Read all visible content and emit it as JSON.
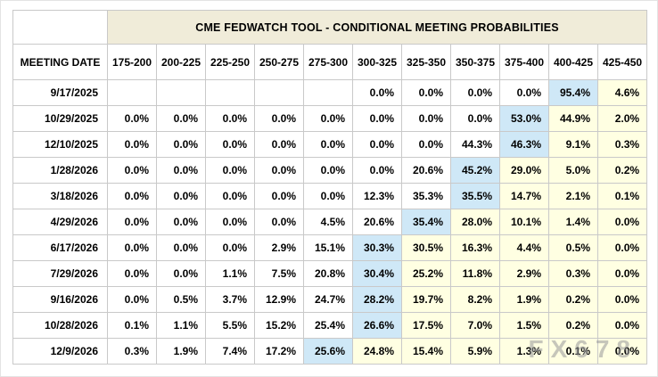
{
  "watermark": "FX678",
  "colors": {
    "highlight_blue": "#cfe8f7",
    "highlight_cream": "#ffffe2",
    "title_background": "#f0ecd9"
  },
  "chart_data": {
    "type": "table",
    "title": "CME FEDWATCH TOOL - CONDITIONAL MEETING PROBABILITIES",
    "row_header": "MEETING DATE",
    "columns": [
      "175-200",
      "200-225",
      "225-250",
      "250-275",
      "275-300",
      "300-325",
      "325-350",
      "350-375",
      "375-400",
      "400-425",
      "425-450"
    ],
    "rows": [
      {
        "date": "9/17/2025",
        "values": [
          "",
          "",
          "",
          "",
          "",
          "0.0%",
          "0.0%",
          "0.0%",
          "0.0%",
          "95.4%",
          "4.6%"
        ],
        "highlight_index": 9
      },
      {
        "date": "10/29/2025",
        "values": [
          "0.0%",
          "0.0%",
          "0.0%",
          "0.0%",
          "0.0%",
          "0.0%",
          "0.0%",
          "0.0%",
          "53.0%",
          "44.9%",
          "2.0%"
        ],
        "highlight_index": 8
      },
      {
        "date": "12/10/2025",
        "values": [
          "0.0%",
          "0.0%",
          "0.0%",
          "0.0%",
          "0.0%",
          "0.0%",
          "0.0%",
          "44.3%",
          "46.3%",
          "9.1%",
          "0.3%"
        ],
        "highlight_index": 8
      },
      {
        "date": "1/28/2026",
        "values": [
          "0.0%",
          "0.0%",
          "0.0%",
          "0.0%",
          "0.0%",
          "0.0%",
          "20.6%",
          "45.2%",
          "29.0%",
          "5.0%",
          "0.2%"
        ],
        "highlight_index": 7
      },
      {
        "date": "3/18/2026",
        "values": [
          "0.0%",
          "0.0%",
          "0.0%",
          "0.0%",
          "0.0%",
          "12.3%",
          "35.3%",
          "35.5%",
          "14.7%",
          "2.1%",
          "0.1%"
        ],
        "highlight_index": 7
      },
      {
        "date": "4/29/2026",
        "values": [
          "0.0%",
          "0.0%",
          "0.0%",
          "0.0%",
          "4.5%",
          "20.6%",
          "35.4%",
          "28.0%",
          "10.1%",
          "1.4%",
          "0.0%"
        ],
        "highlight_index": 6
      },
      {
        "date": "6/17/2026",
        "values": [
          "0.0%",
          "0.0%",
          "0.0%",
          "2.9%",
          "15.1%",
          "30.3%",
          "30.5%",
          "16.3%",
          "4.4%",
          "0.5%",
          "0.0%"
        ],
        "highlight_index": 5
      },
      {
        "date": "7/29/2026",
        "values": [
          "0.0%",
          "0.0%",
          "1.1%",
          "7.5%",
          "20.8%",
          "30.4%",
          "25.2%",
          "11.8%",
          "2.9%",
          "0.3%",
          "0.0%"
        ],
        "highlight_index": 5
      },
      {
        "date": "9/16/2026",
        "values": [
          "0.0%",
          "0.5%",
          "3.7%",
          "12.9%",
          "24.7%",
          "28.2%",
          "19.7%",
          "8.2%",
          "1.9%",
          "0.2%",
          "0.0%"
        ],
        "highlight_index": 5
      },
      {
        "date": "10/28/2026",
        "values": [
          "0.1%",
          "1.1%",
          "5.5%",
          "15.2%",
          "25.4%",
          "26.6%",
          "17.5%",
          "7.0%",
          "1.5%",
          "0.2%",
          "0.0%"
        ],
        "highlight_index": 5
      },
      {
        "date": "12/9/2026",
        "values": [
          "0.3%",
          "1.9%",
          "7.4%",
          "17.2%",
          "25.6%",
          "24.8%",
          "15.4%",
          "5.9%",
          "1.3%",
          "0.1%",
          "0.0%"
        ],
        "highlight_index": 4
      }
    ]
  }
}
